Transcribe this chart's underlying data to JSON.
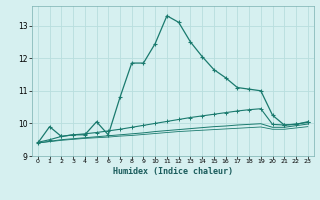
{
  "xlabel": "Humidex (Indice chaleur)",
  "background_color": "#d6f0f0",
  "grid_color": "#b8dede",
  "line_color": "#1a7a6e",
  "xlim": [
    -0.5,
    23.5
  ],
  "ylim": [
    9.0,
    13.6
  ],
  "yticks": [
    9,
    10,
    11,
    12,
    13
  ],
  "xticks": [
    0,
    1,
    2,
    3,
    4,
    5,
    6,
    7,
    8,
    9,
    10,
    11,
    12,
    13,
    14,
    15,
    16,
    17,
    18,
    19,
    20,
    21,
    22,
    23
  ],
  "series1_x": [
    0,
    1,
    2,
    3,
    4,
    5,
    6,
    7,
    8,
    9,
    10,
    11,
    12,
    13,
    14,
    15,
    16,
    17,
    18,
    19,
    20,
    21,
    22,
    23
  ],
  "series1_y": [
    9.4,
    9.9,
    9.6,
    9.65,
    9.65,
    10.05,
    9.65,
    10.8,
    11.85,
    11.85,
    12.45,
    13.3,
    13.1,
    12.5,
    12.05,
    11.65,
    11.4,
    11.1,
    11.05,
    11.0,
    10.25,
    9.95,
    9.97,
    10.05
  ],
  "series2_x": [
    0,
    1,
    2,
    3,
    4,
    5,
    6,
    7,
    8,
    9,
    10,
    11,
    12,
    13,
    14,
    15,
    16,
    17,
    18,
    19,
    20,
    21,
    22,
    23
  ],
  "series2_y": [
    9.42,
    9.5,
    9.6,
    9.65,
    9.68,
    9.72,
    9.77,
    9.82,
    9.88,
    9.94,
    10.0,
    10.06,
    10.12,
    10.18,
    10.23,
    10.28,
    10.33,
    10.38,
    10.42,
    10.45,
    9.97,
    9.95,
    9.98,
    10.03
  ],
  "series3_x": [
    0,
    1,
    2,
    3,
    4,
    5,
    6,
    7,
    8,
    9,
    10,
    11,
    12,
    13,
    14,
    15,
    16,
    17,
    18,
    19,
    20,
    21,
    22,
    23
  ],
  "series3_y": [
    9.4,
    9.45,
    9.5,
    9.53,
    9.56,
    9.59,
    9.62,
    9.65,
    9.68,
    9.71,
    9.75,
    9.78,
    9.81,
    9.84,
    9.87,
    9.9,
    9.92,
    9.95,
    9.97,
    9.99,
    9.88,
    9.88,
    9.93,
    9.98
  ],
  "series4_x": [
    0,
    1,
    2,
    3,
    4,
    5,
    6,
    7,
    8,
    9,
    10,
    11,
    12,
    13,
    14,
    15,
    16,
    17,
    18,
    19,
    20,
    21,
    22,
    23
  ],
  "series4_y": [
    9.4,
    9.44,
    9.48,
    9.51,
    9.54,
    9.56,
    9.58,
    9.61,
    9.63,
    9.66,
    9.69,
    9.72,
    9.75,
    9.77,
    9.79,
    9.81,
    9.83,
    9.85,
    9.87,
    9.89,
    9.82,
    9.82,
    9.86,
    9.9
  ]
}
